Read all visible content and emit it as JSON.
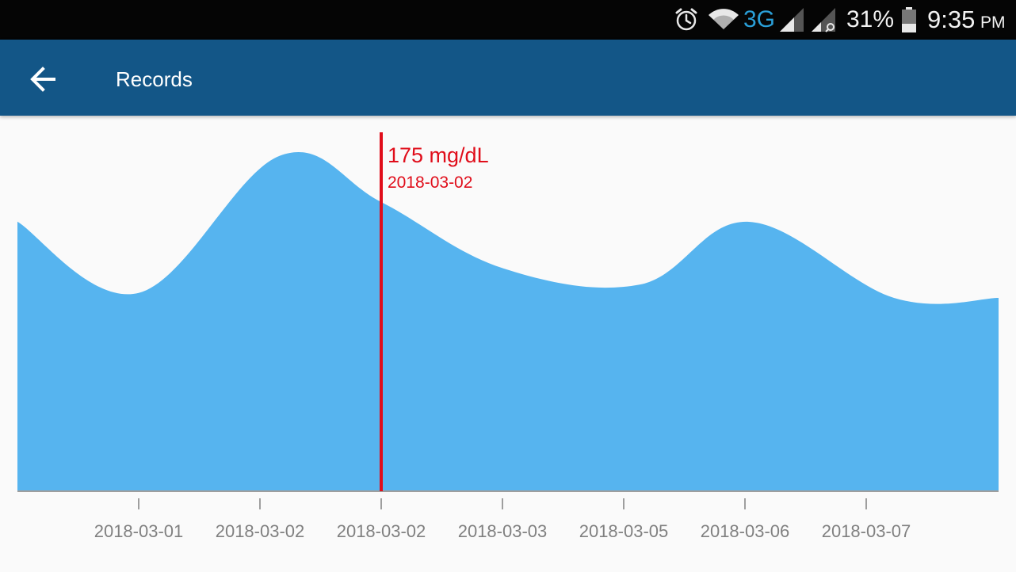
{
  "status_bar": {
    "network": "3G",
    "battery": "31%",
    "time": "9:35",
    "ampm": "PM",
    "icons": [
      "alarm-icon",
      "wifi-icon",
      "signal-icon",
      "signal-icon",
      "battery-icon"
    ]
  },
  "app_bar": {
    "back_icon": "arrow-left-icon",
    "title": "Records"
  },
  "colors": {
    "status_bar": "#050505",
    "app_bar": "#135687",
    "area_fill": "#56b4ef",
    "marker": "#e00d1a",
    "network_text": "#2a9fd8",
    "axis_text": "#808080"
  },
  "chart_data": {
    "type": "area",
    "unit": "mg/dL",
    "categories": [
      "2018-03-01",
      "2018-03-02",
      "2018-03-02",
      "2018-03-03",
      "2018-03-05",
      "2018-03-06",
      "2018-03-07"
    ],
    "values": [
      120,
      203,
      175,
      135,
      125,
      163,
      117
    ],
    "ylim": [
      0,
      210
    ],
    "selected": {
      "index": 2,
      "value_label": "175 mg/dL",
      "date_label": "2018-03-02"
    },
    "grid": false,
    "legend": "none"
  }
}
